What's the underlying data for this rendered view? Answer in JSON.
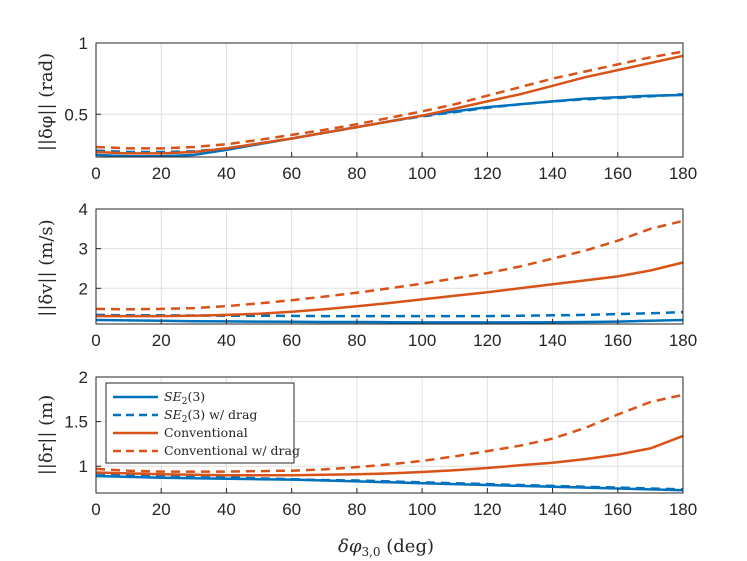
{
  "chart_data": [
    {
      "type": "line",
      "ylabel": "||δφ|| (rad)",
      "xlim": [
        0,
        180
      ],
      "ylim": [
        0.2,
        1
      ],
      "xticks": [
        0,
        20,
        40,
        60,
        80,
        100,
        120,
        140,
        160,
        180
      ],
      "yticks": [
        0.5,
        1
      ],
      "ytick_labels": [
        "0.5",
        "1"
      ],
      "grid": true,
      "x": [
        0,
        10,
        20,
        30,
        40,
        50,
        60,
        70,
        80,
        90,
        100,
        110,
        120,
        130,
        140,
        150,
        160,
        170,
        180
      ],
      "series": [
        {
          "name": "SE2(3)",
          "style": "solid",
          "color": "#0072BD",
          "values": [
            0.215,
            0.205,
            0.205,
            0.215,
            0.25,
            0.29,
            0.33,
            0.37,
            0.41,
            0.45,
            0.49,
            0.52,
            0.55,
            0.57,
            0.59,
            0.61,
            0.62,
            0.63,
            0.635
          ]
        },
        {
          "name": "SE2(3) w/ drag",
          "style": "dashed",
          "color": "#0072BD",
          "values": [
            0.245,
            0.235,
            0.235,
            0.24,
            0.26,
            0.295,
            0.33,
            0.37,
            0.41,
            0.45,
            0.485,
            0.515,
            0.545,
            0.57,
            0.59,
            0.605,
            0.615,
            0.625,
            0.64
          ]
        },
        {
          "name": "Conventional",
          "style": "solid",
          "color": "#D95319",
          "values": [
            0.235,
            0.225,
            0.225,
            0.235,
            0.26,
            0.295,
            0.33,
            0.37,
            0.41,
            0.45,
            0.49,
            0.54,
            0.59,
            0.64,
            0.7,
            0.76,
            0.81,
            0.86,
            0.91
          ]
        },
        {
          "name": "Conventional w/ drag",
          "style": "dashed",
          "color": "#D95319",
          "values": [
            0.27,
            0.26,
            0.26,
            0.27,
            0.29,
            0.32,
            0.355,
            0.39,
            0.43,
            0.475,
            0.52,
            0.57,
            0.63,
            0.69,
            0.75,
            0.8,
            0.85,
            0.9,
            0.94
          ]
        }
      ]
    },
    {
      "type": "line",
      "ylabel": "||δv|| (m/s)",
      "xlim": [
        0,
        180
      ],
      "ylim": [
        1.1,
        4
      ],
      "xticks": [
        0,
        20,
        40,
        60,
        80,
        100,
        120,
        140,
        160,
        180
      ],
      "yticks": [
        2,
        3,
        4
      ],
      "ytick_labels": [
        "2",
        "3",
        "4"
      ],
      "grid": true,
      "x": [
        0,
        10,
        20,
        30,
        40,
        50,
        60,
        70,
        80,
        90,
        100,
        110,
        120,
        130,
        140,
        150,
        160,
        170,
        180
      ],
      "series": [
        {
          "name": "SE2(3)",
          "style": "solid",
          "color": "#0072BD",
          "values": [
            1.2,
            1.19,
            1.18,
            1.17,
            1.165,
            1.16,
            1.155,
            1.15,
            1.15,
            1.145,
            1.14,
            1.14,
            1.14,
            1.14,
            1.145,
            1.15,
            1.16,
            1.18,
            1.2
          ]
        },
        {
          "name": "SE2(3) w/ drag",
          "style": "dashed",
          "color": "#0072BD",
          "values": [
            1.33,
            1.32,
            1.32,
            1.315,
            1.31,
            1.31,
            1.305,
            1.3,
            1.3,
            1.3,
            1.3,
            1.3,
            1.3,
            1.31,
            1.32,
            1.33,
            1.35,
            1.37,
            1.4
          ]
        },
        {
          "name": "Conventional",
          "style": "solid",
          "color": "#D95319",
          "values": [
            1.3,
            1.3,
            1.3,
            1.31,
            1.33,
            1.36,
            1.41,
            1.47,
            1.55,
            1.63,
            1.72,
            1.81,
            1.9,
            2.0,
            2.1,
            2.2,
            2.3,
            2.45,
            2.65
          ]
        },
        {
          "name": "Conventional w/ drag",
          "style": "dashed",
          "color": "#D95319",
          "values": [
            1.48,
            1.47,
            1.48,
            1.5,
            1.55,
            1.62,
            1.7,
            1.79,
            1.89,
            2.0,
            2.12,
            2.25,
            2.38,
            2.55,
            2.75,
            2.95,
            3.2,
            3.5,
            3.7
          ]
        }
      ]
    },
    {
      "type": "line",
      "ylabel": "||δr|| (m)",
      "xlabel": "δφ3,0 (deg)",
      "xlim": [
        0,
        180
      ],
      "ylim": [
        0.7,
        2
      ],
      "xticks": [
        0,
        20,
        40,
        60,
        80,
        100,
        120,
        140,
        160,
        180
      ],
      "yticks": [
        1,
        1.5,
        2
      ],
      "ytick_labels": [
        "1",
        "1.5",
        "2"
      ],
      "grid": true,
      "legend": "top-left",
      "x": [
        0,
        10,
        20,
        30,
        40,
        50,
        60,
        70,
        80,
        90,
        100,
        110,
        120,
        130,
        140,
        150,
        160,
        170,
        180
      ],
      "series": [
        {
          "name": "SE2(3)",
          "style": "solid",
          "color": "#0072BD",
          "values": [
            0.89,
            0.88,
            0.87,
            0.865,
            0.86,
            0.855,
            0.85,
            0.84,
            0.83,
            0.82,
            0.81,
            0.8,
            0.79,
            0.78,
            0.77,
            0.76,
            0.75,
            0.74,
            0.73
          ]
        },
        {
          "name": "SE2(3) w/ drag",
          "style": "dashed",
          "color": "#0072BD",
          "values": [
            0.92,
            0.905,
            0.895,
            0.885,
            0.875,
            0.865,
            0.855,
            0.845,
            0.84,
            0.83,
            0.82,
            0.81,
            0.8,
            0.79,
            0.78,
            0.77,
            0.76,
            0.75,
            0.74
          ]
        },
        {
          "name": "Conventional",
          "style": "solid",
          "color": "#D95319",
          "values": [
            0.93,
            0.92,
            0.91,
            0.905,
            0.9,
            0.9,
            0.9,
            0.905,
            0.91,
            0.92,
            0.935,
            0.955,
            0.98,
            1.01,
            1.04,
            1.08,
            1.13,
            1.2,
            1.34
          ]
        },
        {
          "name": "Conventional w/ drag",
          "style": "dashed",
          "color": "#D95319",
          "values": [
            0.97,
            0.95,
            0.94,
            0.94,
            0.94,
            0.945,
            0.95,
            0.965,
            0.99,
            1.02,
            1.06,
            1.11,
            1.17,
            1.23,
            1.31,
            1.43,
            1.58,
            1.72,
            1.8
          ]
        }
      ]
    }
  ],
  "legend_entries": [
    {
      "label": "SE2(3)",
      "series_index": 0
    },
    {
      "label": "SE2(3) w/ drag",
      "series_index": 1
    },
    {
      "label": "Conventional",
      "series_index": 2
    },
    {
      "label": "Conventional w/ drag",
      "series_index": 3
    }
  ],
  "labels": {
    "y1": "||δφ|| (rad)",
    "y2": "||δv|| (m/s)",
    "y3": "||δr|| (m)",
    "x": "δφ3,0 (deg)",
    "legend0_base": "SE",
    "legend0_sub": "2",
    "legend0_suffix": "(3)",
    "legend1_base": "SE",
    "legend1_sub": "2",
    "legend1_suffix": "(3) w/ drag",
    "legend2": "Conventional",
    "legend3": "Conventional w/ drag"
  }
}
